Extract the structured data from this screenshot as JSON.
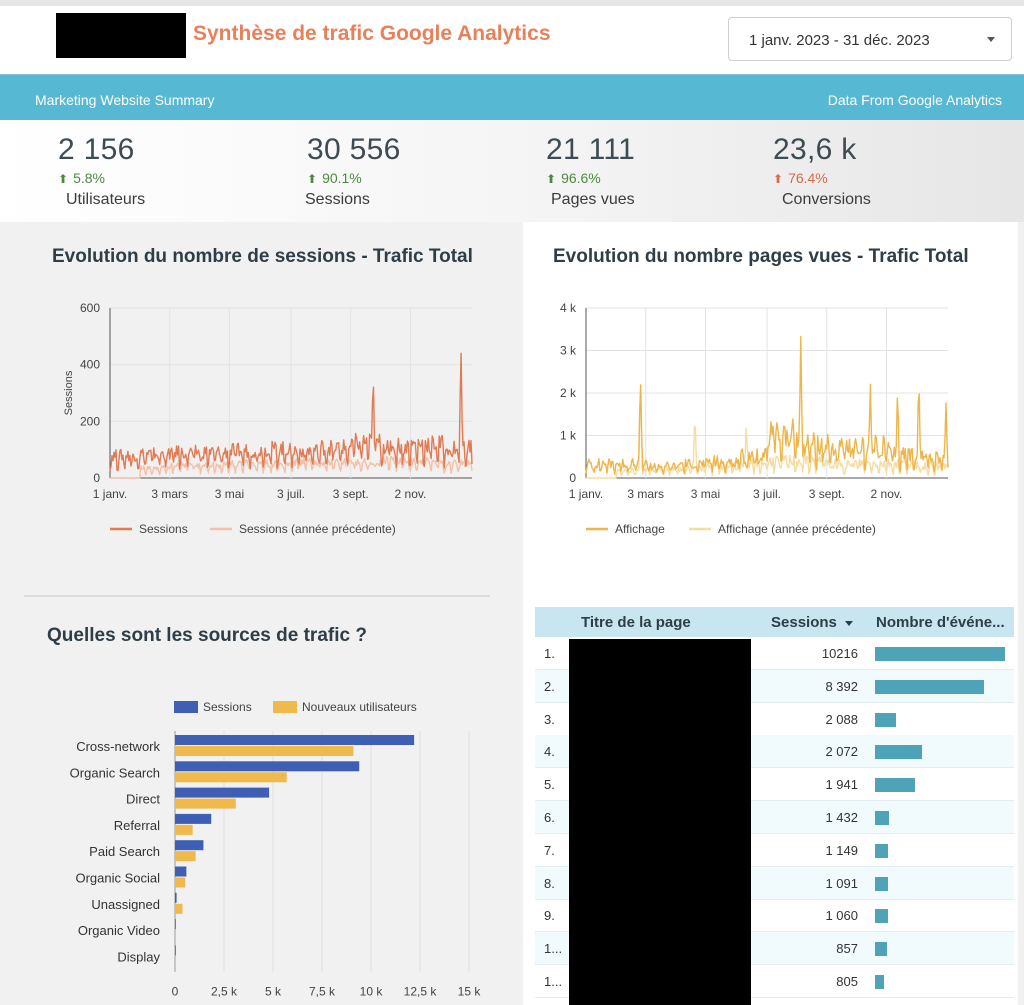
{
  "header": {
    "title": "Synthèse de trafic Google Analytics",
    "date_range": "1 janv. 2023 - 31 déc. 2023"
  },
  "band": {
    "left_text": "Marketing Website Summary",
    "right_text": "Data From Google Analytics"
  },
  "kpis": [
    {
      "value": "2 156",
      "delta": "5.8%",
      "direction": "up",
      "label": "Utilisateurs"
    },
    {
      "value": "30 556",
      "delta": "90.1%",
      "direction": "up",
      "label": "Sessions"
    },
    {
      "value": "21 111",
      "delta": "96.6%",
      "direction": "up",
      "label": "Pages vues"
    },
    {
      "value": "23,6 k",
      "delta": "76.4%",
      "direction": "down",
      "label": "Conversions"
    }
  ],
  "colors": {
    "accent_title": "#e8805a",
    "band": "#56b8d2",
    "up": "#4a8c3c",
    "down": "#d76a48",
    "sessions_series": "#e07b53",
    "sessions_prev_series": "#f3c0a8",
    "pages_series": "#eeb64a",
    "pages_prev_series": "#f6dca0",
    "bar_sessions": "#3f5fb5",
    "bar_new_users": "#f0b94b",
    "table_bar": "#4ea3b8"
  },
  "chart_data": [
    {
      "type": "line",
      "title": "Evolution du nombre de sessions - Trafic Total",
      "ylabel": "Sessions",
      "xlabel": "",
      "x_tick_labels": [
        "1 janv.",
        "3 mars",
        "3 mai",
        "3 juil.",
        "3 sept.",
        "2 nov."
      ],
      "y_tick_labels": [
        "0",
        "200",
        "400",
        "600"
      ],
      "ylim": [
        0,
        600
      ],
      "grid": true,
      "legend_position": "bottom",
      "series": [
        {
          "name": "Sessions",
          "color": "#e07b53",
          "monthly_approx": [
            70,
            75,
            80,
            80,
            85,
            90,
            85,
            95,
            110,
            100,
            105,
            95
          ],
          "spikes": [
            {
              "x_month": 8.7,
              "y": 395
            },
            {
              "x_month": 11.6,
              "y": 480
            }
          ]
        },
        {
          "name": "Sessions (année précédente)",
          "color": "#f3c0a8",
          "monthly_approx": [
            0,
            30,
            40,
            40,
            45,
            45,
            50,
            50,
            50,
            55,
            50,
            45
          ]
        }
      ]
    },
    {
      "type": "line",
      "title": "Evolution du nombre pages vues - Trafic Total",
      "ylabel": "",
      "xlabel": "",
      "x_tick_labels": [
        "1 janv.",
        "3 mars",
        "3 mai",
        "3 juil.",
        "3 sept.",
        "2 nov."
      ],
      "y_tick_labels": [
        "0",
        "1 k",
        "2 k",
        "3 k",
        "4 k"
      ],
      "ylim": [
        0,
        4000
      ],
      "grid": true,
      "legend_position": "bottom",
      "series": [
        {
          "name": "Affichage",
          "color": "#eeb64a",
          "monthly_approx": [
            300,
            300,
            250,
            300,
            350,
            450,
            900,
            700,
            600,
            650,
            500,
            450
          ],
          "spikes": [
            {
              "x_month": 1.8,
              "y": 2500
            },
            {
              "x_month": 6.3,
              "y": 1600
            },
            {
              "x_month": 7.1,
              "y": 3400
            },
            {
              "x_month": 9.4,
              "y": 2300
            },
            {
              "x_month": 10.3,
              "y": 2200
            },
            {
              "x_month": 11.0,
              "y": 2500
            },
            {
              "x_month": 11.9,
              "y": 1800
            }
          ]
        },
        {
          "name": "Affichage (année précédente)",
          "color": "#f6dca0",
          "monthly_approx": [
            0,
            150,
            200,
            200,
            250,
            300,
            350,
            350,
            300,
            300,
            300,
            250
          ],
          "spikes": [
            {
              "x_month": 1.8,
              "y": 2500
            },
            {
              "x_month": 3.6,
              "y": 1600
            },
            {
              "x_month": 5.3,
              "y": 1300
            }
          ]
        }
      ]
    },
    {
      "type": "bar",
      "orientation": "horizontal",
      "title": "Quelles sont les sources de trafic ?",
      "categories": [
        "Cross-network",
        "Organic Search",
        "Direct",
        "Referral",
        "Paid Search",
        "Organic Social",
        "Unassigned",
        "Organic Video",
        "Display"
      ],
      "series": [
        {
          "name": "Sessions",
          "color": "#3f5fb5",
          "values": [
            12200,
            9400,
            4800,
            1850,
            1450,
            580,
            80,
            20,
            10
          ]
        },
        {
          "name": "Nouveaux utilisateurs",
          "color": "#f0b94b",
          "values": [
            9100,
            5700,
            3100,
            900,
            1050,
            520,
            380,
            10,
            5
          ]
        }
      ],
      "xlim": [
        0,
        15000
      ],
      "x_tick_labels": [
        "0",
        "2,5 k",
        "5 k",
        "7,5 k",
        "10 k",
        "12,5 k",
        "15 k"
      ],
      "grid": true,
      "legend_position": "top"
    },
    {
      "type": "table",
      "columns": [
        "Titre de la page",
        "Sessions",
        "Nombre d'événe..."
      ],
      "sorted_column": "Sessions",
      "rows": [
        {
          "index": "1.",
          "sessions": "10216",
          "events_bar": 1.0
        },
        {
          "index": "2.",
          "sessions": "8 392",
          "events_bar": 0.84
        },
        {
          "index": "3.",
          "sessions": "2 088",
          "events_bar": 0.16
        },
        {
          "index": "4.",
          "sessions": "2 072",
          "events_bar": 0.36
        },
        {
          "index": "5.",
          "sessions": "1 941",
          "events_bar": 0.31
        },
        {
          "index": "6.",
          "sessions": "1 432",
          "events_bar": 0.11
        },
        {
          "index": "7.",
          "sessions": "1 149",
          "events_bar": 0.1
        },
        {
          "index": "8.",
          "sessions": "1 091",
          "events_bar": 0.1
        },
        {
          "index": "9.",
          "sessions": "1 060",
          "events_bar": 0.1
        },
        {
          "index": "1...",
          "sessions": "857",
          "events_bar": 0.09
        },
        {
          "index": "1...",
          "sessions": "805",
          "events_bar": 0.07
        }
      ]
    }
  ]
}
